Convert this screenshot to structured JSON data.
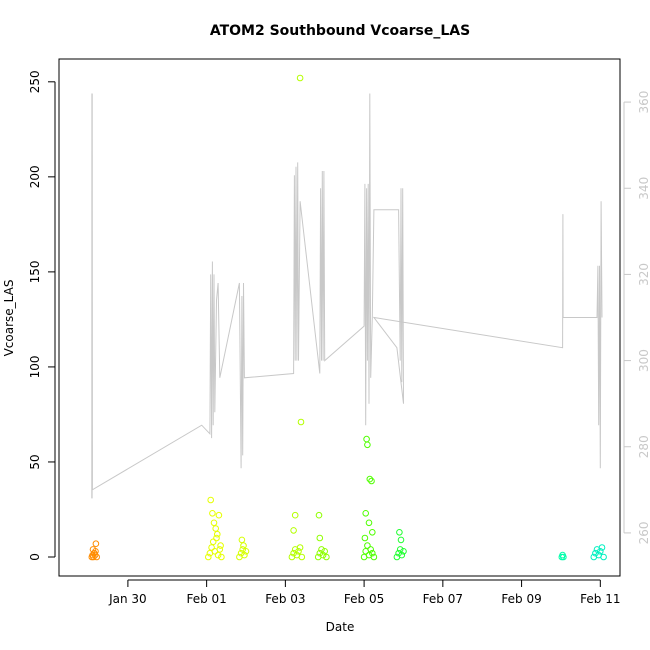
{
  "chart_data": {
    "type": "scatter",
    "title": "ATOM2 Southbound Vcoarse_LAS",
    "xlabel": "Date",
    "ylabel": "Vcoarse_LAS",
    "xlim": [
      "2025-01-28T06:00",
      "2025-02-11T12:00"
    ],
    "ylim": [
      -10,
      262
    ],
    "y2lim": [
      250,
      370
    ],
    "grid": false,
    "x_ticks": [
      {
        "t": "2025-01-30T00:00",
        "label": "Jan 30"
      },
      {
        "t": "2025-02-01T00:00",
        "label": "Feb 01"
      },
      {
        "t": "2025-02-03T00:00",
        "label": "Feb 03"
      },
      {
        "t": "2025-02-05T00:00",
        "label": "Feb 05"
      },
      {
        "t": "2025-02-07T00:00",
        "label": "Feb 07"
      },
      {
        "t": "2025-02-09T00:00",
        "label": "Feb 09"
      },
      {
        "t": "2025-02-11T00:00",
        "label": "Feb 11"
      }
    ],
    "y_ticks": [
      "0",
      "50",
      "100",
      "150",
      "200",
      "250"
    ],
    "y2_ticks": [
      "260",
      "280",
      "300",
      "320",
      "340",
      "360"
    ],
    "y2_color": "#c8c8c8",
    "line_series": {
      "color": "#c8c8c8",
      "points": [
        [
          "2025-01-29T02:00",
          268
        ],
        [
          "2025-01-29T02:05",
          362
        ],
        [
          "2025-01-29T02:10",
          268
        ],
        [
          "2025-01-29T02:15",
          362
        ],
        [
          "2025-01-29T02:20",
          270
        ],
        [
          "2025-01-31T21:00",
          285
        ],
        [
          "2025-02-01T02:00",
          283
        ],
        [
          "2025-02-01T02:30",
          320
        ],
        [
          "2025-02-01T03:00",
          282
        ],
        [
          "2025-02-01T03:30",
          323
        ],
        [
          "2025-02-01T04:00",
          285
        ],
        [
          "2025-02-01T04:30",
          320
        ],
        [
          "2025-02-01T05:00",
          288
        ],
        [
          "2025-02-01T06:00",
          314
        ],
        [
          "2025-02-01T07:00",
          318
        ],
        [
          "2025-02-01T08:00",
          296
        ],
        [
          "2025-02-01T20:00",
          318
        ],
        [
          "2025-02-01T21:00",
          275
        ],
        [
          "2025-02-01T21:30",
          315
        ],
        [
          "2025-02-01T22:00",
          278
        ],
        [
          "2025-02-01T22:30",
          318
        ],
        [
          "2025-02-01T23:00",
          296
        ],
        [
          "2025-02-03T05:00",
          297
        ],
        [
          "2025-02-03T05:30",
          343
        ],
        [
          "2025-02-03T06:00",
          300
        ],
        [
          "2025-02-03T06:30",
          345
        ],
        [
          "2025-02-03T07:00",
          300
        ],
        [
          "2025-02-03T07:30",
          346
        ],
        [
          "2025-02-03T08:00",
          300
        ],
        [
          "2025-02-03T09:00",
          337
        ],
        [
          "2025-02-03T21:00",
          297
        ],
        [
          "2025-02-03T21:30",
          340
        ],
        [
          "2025-02-03T22:00",
          300
        ],
        [
          "2025-02-03T22:30",
          344
        ],
        [
          "2025-02-03T23:00",
          300
        ],
        [
          "2025-02-03T23:30",
          344
        ],
        [
          "2025-02-04T00:00",
          300
        ],
        [
          "2025-02-05T00:00",
          308
        ],
        [
          "2025-02-05T00:30",
          341
        ],
        [
          "2025-02-05T01:00",
          285
        ],
        [
          "2025-02-05T01:30",
          340
        ],
        [
          "2025-02-05T02:00",
          300
        ],
        [
          "2025-02-05T02:30",
          341
        ],
        [
          "2025-02-05T03:00",
          290
        ],
        [
          "2025-02-05T03:30",
          362
        ],
        [
          "2025-02-05T04:00",
          296
        ],
        [
          "2025-02-05T05:00",
          310
        ],
        [
          "2025-02-05T06:00",
          335
        ],
        [
          "2025-02-05T21:00",
          335
        ],
        [
          "2025-02-05T22:00",
          300
        ],
        [
          "2025-02-05T22:30",
          340
        ],
        [
          "2025-02-05T23:00",
          295
        ],
        [
          "2025-02-05T23:30",
          340
        ],
        [
          "2025-02-06T00:00",
          290
        ],
        [
          "2025-02-05T20:00",
          303
        ],
        [
          "2025-02-05T06:00",
          310
        ],
        [
          "2025-02-10T01:00",
          303
        ],
        [
          "2025-02-10T01:10",
          334
        ],
        [
          "2025-02-10T01:20",
          310
        ],
        [
          "2025-02-10T22:00",
          310
        ],
        [
          "2025-02-10T22:30",
          322
        ],
        [
          "2025-02-10T23:00",
          285
        ],
        [
          "2025-02-10T23:30",
          322
        ],
        [
          "2025-02-11T00:00",
          275
        ],
        [
          "2025-02-11T00:30",
          337
        ],
        [
          "2025-02-11T01:00",
          310
        ]
      ]
    },
    "scatter_groups": [
      {
        "color": "#ff8c00",
        "day_start": "2025-01-29T00:00",
        "points": [
          [
            "2025-01-29T02:00",
            0
          ],
          [
            "2025-01-29T02:30",
            1
          ],
          [
            "2025-01-29T03:00",
            0
          ],
          [
            "2025-01-29T03:30",
            2
          ],
          [
            "2025-01-29T04:00",
            1
          ],
          [
            "2025-01-29T02:45",
            4
          ],
          [
            "2025-01-29T04:30",
            7
          ],
          [
            "2025-01-29T05:00",
            0
          ],
          [
            "2025-01-29T04:15",
            3
          ]
        ]
      },
      {
        "color": "#e6ff00",
        "day_start": "2025-02-01T00:00",
        "points": [
          [
            "2025-02-01T01:00",
            0
          ],
          [
            "2025-02-01T02:00",
            2
          ],
          [
            "2025-02-01T03:00",
            5
          ],
          [
            "2025-02-01T04:00",
            8
          ],
          [
            "2025-02-01T05:00",
            3
          ],
          [
            "2025-02-01T06:00",
            10
          ],
          [
            "2025-02-01T07:00",
            1
          ],
          [
            "2025-02-01T08:00",
            4
          ],
          [
            "2025-02-01T09:00",
            0
          ],
          [
            "2025-02-01T02:30",
            30
          ],
          [
            "2025-02-01T03:30",
            23
          ],
          [
            "2025-02-01T04:30",
            18
          ],
          [
            "2025-02-01T05:30",
            15
          ],
          [
            "2025-02-01T06:30",
            12
          ],
          [
            "2025-02-01T07:30",
            22
          ],
          [
            "2025-02-01T08:30",
            6
          ]
        ]
      },
      {
        "color": "#d6ff00",
        "day_start": "2025-02-01T20:00",
        "points": [
          [
            "2025-02-01T20:00",
            0
          ],
          [
            "2025-02-01T21:00",
            2
          ],
          [
            "2025-02-01T22:00",
            4
          ],
          [
            "2025-02-01T23:00",
            1
          ],
          [
            "2025-02-02T00:00",
            3
          ],
          [
            "2025-02-01T21:30",
            9
          ],
          [
            "2025-02-01T22:30",
            6
          ]
        ]
      },
      {
        "color": "#b5ff00",
        "day_start": "2025-02-03T04:00",
        "points": [
          [
            "2025-02-03T04:00",
            0
          ],
          [
            "2025-02-03T05:00",
            2
          ],
          [
            "2025-02-03T06:00",
            4
          ],
          [
            "2025-02-03T07:00",
            1
          ],
          [
            "2025-02-03T08:00",
            3
          ],
          [
            "2025-02-03T09:00",
            5
          ],
          [
            "2025-02-03T10:00",
            0
          ],
          [
            "2025-02-03T06:00",
            22
          ],
          [
            "2025-02-03T05:00",
            14
          ],
          [
            "2025-02-03T09:00",
            252
          ],
          [
            "2025-02-03T09:30",
            71
          ]
        ]
      },
      {
        "color": "#8fff00",
        "day_start": "2025-02-03T21:00",
        "points": [
          [
            "2025-02-03T20:00",
            0
          ],
          [
            "2025-02-03T21:00",
            2
          ],
          [
            "2025-02-03T22:00",
            4
          ],
          [
            "2025-02-03T23:00",
            1
          ],
          [
            "2025-02-04T00:00",
            3
          ],
          [
            "2025-02-04T01:00",
            0
          ],
          [
            "2025-02-03T20:30",
            22
          ],
          [
            "2025-02-03T21:00",
            10
          ]
        ]
      },
      {
        "color": "#4fff00",
        "day_start": "2025-02-05T00:00",
        "points": [
          [
            "2025-02-05T00:00",
            0
          ],
          [
            "2025-02-05T01:00",
            3
          ],
          [
            "2025-02-05T02:00",
            6
          ],
          [
            "2025-02-05T03:00",
            1
          ],
          [
            "2025-02-05T04:00",
            4
          ],
          [
            "2025-02-05T05:00",
            2
          ],
          [
            "2025-02-05T06:00",
            0
          ],
          [
            "2025-02-05T01:30",
            62
          ],
          [
            "2025-02-05T02:00",
            59
          ],
          [
            "2025-02-05T03:30",
            41
          ],
          [
            "2025-02-05T04:30",
            40
          ],
          [
            "2025-02-05T01:00",
            23
          ],
          [
            "2025-02-05T03:00",
            18
          ],
          [
            "2025-02-05T05:00",
            13
          ],
          [
            "2025-02-05T00:30",
            10
          ]
        ]
      },
      {
        "color": "#1fff30",
        "day_start": "2025-02-05T20:00",
        "points": [
          [
            "2025-02-05T20:00",
            0
          ],
          [
            "2025-02-05T21:00",
            2
          ],
          [
            "2025-02-05T22:00",
            4
          ],
          [
            "2025-02-05T23:00",
            1
          ],
          [
            "2025-02-06T00:00",
            3
          ],
          [
            "2025-02-05T21:30",
            13
          ],
          [
            "2025-02-05T22:30",
            9
          ]
        ]
      },
      {
        "color": "#00ffaa",
        "day_start": "2025-02-10T00:00",
        "points": [
          [
            "2025-02-10T00:30",
            0
          ],
          [
            "2025-02-10T01:00",
            1
          ],
          [
            "2025-02-10T01:30",
            0
          ]
        ]
      },
      {
        "color": "#00f0c0",
        "day_start": "2025-02-10T22:00",
        "points": [
          [
            "2025-02-10T20:00",
            0
          ],
          [
            "2025-02-10T21:00",
            2
          ],
          [
            "2025-02-10T22:00",
            4
          ],
          [
            "2025-02-10T23:00",
            1
          ],
          [
            "2025-02-11T00:00",
            3
          ],
          [
            "2025-02-11T01:00",
            5
          ],
          [
            "2025-02-11T02:00",
            0
          ]
        ]
      }
    ]
  }
}
